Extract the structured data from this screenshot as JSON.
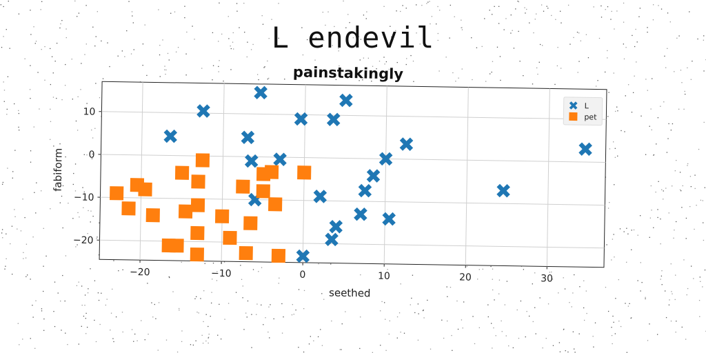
{
  "figure": {
    "suptitle": "L endevil"
  },
  "chart_data": {
    "type": "scatter",
    "title": "painstakingly",
    "xlabel": "seethed",
    "ylabel": "fabiform",
    "xlim": [
      -25,
      37
    ],
    "ylim": [
      -24.5,
      17
    ],
    "xticks": [
      -20,
      -10,
      0,
      10,
      20,
      30
    ],
    "yticks": [
      10,
      0,
      -10,
      -20
    ],
    "grid": true,
    "legend_position": "top-right",
    "series": [
      {
        "name": "L",
        "marker": "x",
        "color": "#1f77b4",
        "points": [
          [
            -5.5,
            15
          ],
          [
            5,
            13.5
          ],
          [
            -12.5,
            10.5
          ],
          [
            -0.5,
            9
          ],
          [
            3.5,
            9
          ],
          [
            -16.5,
            4.5
          ],
          [
            -7,
            4.5
          ],
          [
            12.5,
            3.5
          ],
          [
            34.5,
            3
          ],
          [
            -6.5,
            -1
          ],
          [
            -3,
            -0.5
          ],
          [
            10,
            0
          ],
          [
            8.5,
            -4
          ],
          [
            7.5,
            -7.5
          ],
          [
            24.5,
            -7
          ],
          [
            -6,
            -10
          ],
          [
            2,
            -9
          ],
          [
            7,
            -13
          ],
          [
            10.5,
            -14
          ],
          [
            4,
            -16
          ],
          [
            3.5,
            -19
          ],
          [
            0,
            -23
          ]
        ]
      },
      {
        "name": "pet",
        "marker": "s",
        "color": "#ff7f0e",
        "points": [
          [
            -12.5,
            -1
          ],
          [
            -15,
            -4
          ],
          [
            0,
            -3.5
          ],
          [
            -4,
            -3.5
          ],
          [
            -5,
            -4
          ],
          [
            -13,
            -6
          ],
          [
            -20.5,
            -7
          ],
          [
            -19.5,
            -8
          ],
          [
            -7.5,
            -7
          ],
          [
            -5,
            -8
          ],
          [
            -23,
            -9
          ],
          [
            -3.5,
            -11
          ],
          [
            -13,
            -11.5
          ],
          [
            -14.5,
            -13
          ],
          [
            -21.5,
            -12.5
          ],
          [
            -18.5,
            -14
          ],
          [
            -10,
            -14
          ],
          [
            -6.5,
            -15.5
          ],
          [
            -13,
            -18
          ],
          [
            -9,
            -19
          ],
          [
            -16.5,
            -21
          ],
          [
            -15.5,
            -21
          ],
          [
            -7,
            -22.5
          ],
          [
            -13,
            -23
          ],
          [
            -3,
            -23
          ]
        ]
      }
    ]
  }
}
